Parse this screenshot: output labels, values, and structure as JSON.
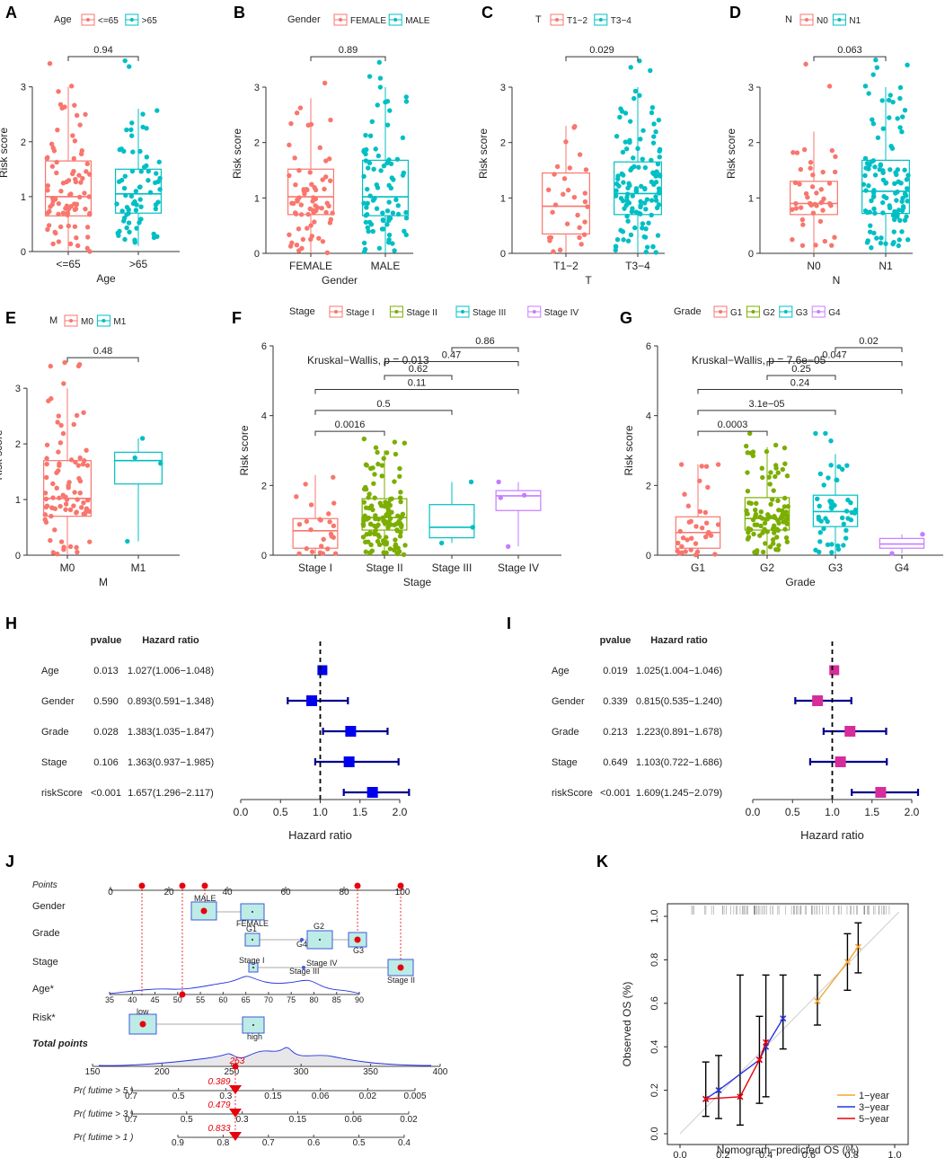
{
  "colors": {
    "g1": "#F8766D",
    "g2": "#7CAE00",
    "g3": "#00BFC4",
    "g4": "#C77CFF",
    "blue": "#0000EE",
    "navy": "#00008B",
    "magenta": "#D62D9A",
    "box_fill": "#BDEBE5",
    "box_stroke": "#3B5BDB",
    "red": "#E8000B",
    "cal_1y": "#F4A533",
    "cal_3y": "#2535E0",
    "cal_5y": "#E8000B"
  },
  "chart_data": [
    {
      "type": "box",
      "panel": "A",
      "legend_title": "Age",
      "xlabel": "Age",
      "ylabel": "Risk score",
      "ylim": [
        0,
        3.6
      ],
      "yticks": [
        0,
        1,
        2,
        3
      ],
      "groups": [
        {
          "name": "<=65",
          "color": "g1",
          "q1": 0.65,
          "median": 1.0,
          "q3": 1.65,
          "lo": 0.0,
          "hi": 3.0,
          "n": 85,
          "max": 3.5,
          "seed": 11
        },
        {
          "name": ">65",
          "color": "g3",
          "q1": 0.7,
          "median": 1.05,
          "q3": 1.5,
          "lo": 0.1,
          "hi": 2.6,
          "n": 70,
          "max": 3.5,
          "seed": 12
        }
      ],
      "comparisons": [
        {
          "a": 0,
          "b": 1,
          "label": "0.94",
          "y": 3.55
        }
      ]
    },
    {
      "type": "box",
      "panel": "B",
      "legend_title": "Gender",
      "xlabel": "Gender",
      "ylabel": "Risk score",
      "ylim": [
        0,
        3.6
      ],
      "yticks": [
        0,
        1,
        2,
        3
      ],
      "groups": [
        {
          "name": "FEMALE",
          "color": "g1",
          "q1": 0.7,
          "median": 1.02,
          "q3": 1.52,
          "lo": 0.0,
          "hi": 2.8,
          "n": 70,
          "max": 3.5,
          "seed": 21
        },
        {
          "name": "MALE",
          "color": "g3",
          "q1": 0.68,
          "median": 1.02,
          "q3": 1.68,
          "lo": 0.0,
          "hi": 3.0,
          "n": 85,
          "max": 3.5,
          "seed": 22
        }
      ],
      "comparisons": [
        {
          "a": 0,
          "b": 1,
          "label": "0.89",
          "y": 3.55
        }
      ]
    },
    {
      "type": "box",
      "panel": "C",
      "legend_title": "T",
      "xlabel": "T",
      "ylabel": "Risk score",
      "ylim": [
        0,
        3.6
      ],
      "yticks": [
        0,
        1,
        2,
        3
      ],
      "groups": [
        {
          "name": "T1−2",
          "color": "g1",
          "q1": 0.35,
          "median": 0.85,
          "q3": 1.45,
          "lo": 0.0,
          "hi": 2.3,
          "n": 30,
          "max": 2.3,
          "seed": 31
        },
        {
          "name": "T3−4",
          "color": "g3",
          "q1": 0.7,
          "median": 1.08,
          "q3": 1.65,
          "lo": 0.0,
          "hi": 3.0,
          "n": 120,
          "max": 3.5,
          "seed": 32
        }
      ],
      "comparisons": [
        {
          "a": 0,
          "b": 1,
          "label": "0.029",
          "y": 3.55
        }
      ]
    },
    {
      "type": "box",
      "panel": "D",
      "legend_title": "N",
      "xlabel": "N",
      "ylabel": "Risk score",
      "ylim": [
        0,
        3.6
      ],
      "yticks": [
        0,
        1,
        2,
        3
      ],
      "groups": [
        {
          "name": "N0",
          "color": "g1",
          "q1": 0.7,
          "median": 0.9,
          "q3": 1.3,
          "lo": 0.0,
          "hi": 2.2,
          "n": 45,
          "max": 3.5,
          "seed": 41
        },
        {
          "name": "N1",
          "color": "g3",
          "q1": 0.72,
          "median": 1.12,
          "q3": 1.68,
          "lo": 0.0,
          "hi": 3.0,
          "n": 110,
          "max": 3.5,
          "seed": 42
        }
      ],
      "comparisons": [
        {
          "a": 0,
          "b": 1,
          "label": "0.063",
          "y": 3.55
        }
      ]
    },
    {
      "type": "box",
      "panel": "E",
      "legend_title": "M",
      "xlabel": "M",
      "ylabel": "Risk score",
      "ylim": [
        0,
        3.6
      ],
      "yticks": [
        0,
        1,
        2,
        3
      ],
      "groups": [
        {
          "name": "M0",
          "color": "g1",
          "q1": 0.7,
          "median": 1.02,
          "q3": 1.7,
          "lo": 0.0,
          "hi": 3.0,
          "n": 85,
          "max": 3.5,
          "seed": 51
        },
        {
          "name": "M1",
          "color": "g3",
          "q1": 1.28,
          "median": 1.7,
          "q3": 1.85,
          "lo": 0.25,
          "hi": 2.1,
          "n": 4,
          "max": 2.1,
          "seed": 52,
          "points": [
            0.25,
            1.65,
            1.75,
            2.1
          ]
        }
      ],
      "comparisons": [
        {
          "a": 0,
          "b": 1,
          "label": "0.48",
          "y": 3.55
        }
      ]
    },
    {
      "type": "box",
      "panel": "F",
      "legend_title": "Stage",
      "xlabel": "Stage",
      "ylabel": "Risk score",
      "ylim": [
        0,
        6
      ],
      "yticks": [
        0,
        2,
        4,
        6
      ],
      "test_label": "Kruskal−Wallis, p = 0.013",
      "groups": [
        {
          "name": "Stage I",
          "color": "g1",
          "q1": 0.2,
          "median": 0.7,
          "q3": 1.05,
          "lo": 0.0,
          "hi": 2.3,
          "n": 25,
          "max": 2.3,
          "seed": 61
        },
        {
          "name": "Stage II",
          "color": "g2",
          "q1": 0.72,
          "median": 1.08,
          "q3": 1.62,
          "lo": 0.0,
          "hi": 3.0,
          "n": 130,
          "max": 3.5,
          "seed": 62
        },
        {
          "name": "Stage III",
          "color": "g3",
          "q1": 0.5,
          "median": 0.8,
          "q3": 1.45,
          "lo": 0.35,
          "hi": 2.1,
          "n": 3,
          "max": 2.1,
          "seed": 63,
          "points": [
            0.35,
            0.8,
            2.1
          ]
        },
        {
          "name": "Stage IV",
          "color": "g4",
          "q1": 1.28,
          "median": 1.7,
          "q3": 1.85,
          "lo": 0.25,
          "hi": 2.1,
          "n": 4,
          "max": 2.1,
          "seed": 64,
          "points": [
            0.25,
            1.65,
            1.72,
            2.1
          ]
        }
      ],
      "comparisons": [
        {
          "a": 0,
          "b": 1,
          "label": "0.0016",
          "y": 3.55
        },
        {
          "a": 0,
          "b": 2,
          "label": "0.5",
          "y": 4.15
        },
        {
          "a": 0,
          "b": 3,
          "label": "0.11",
          "y": 4.75
        },
        {
          "a": 1,
          "b": 2,
          "label": "0.62",
          "y": 5.15
        },
        {
          "a": 1,
          "b": 3,
          "label": "0.47",
          "y": 5.55
        },
        {
          "a": 2,
          "b": 3,
          "label": "0.86",
          "y": 5.95
        }
      ]
    },
    {
      "type": "box",
      "panel": "G",
      "legend_title": "Grade",
      "xlabel": "Grade",
      "ylabel": "Risk score",
      "ylim": [
        0,
        6
      ],
      "yticks": [
        0,
        2,
        4,
        6
      ],
      "test_label": "Kruskal−Wallis, p = 7.6e−05",
      "groups": [
        {
          "name": "G1",
          "color": "g1",
          "q1": 0.2,
          "median": 0.65,
          "q3": 1.1,
          "lo": 0.0,
          "hi": 2.6,
          "n": 35,
          "max": 2.6,
          "seed": 71
        },
        {
          "name": "G2",
          "color": "g2",
          "q1": 0.72,
          "median": 1.05,
          "q3": 1.65,
          "lo": 0.0,
          "hi": 3.1,
          "n": 100,
          "max": 3.5,
          "seed": 72
        },
        {
          "name": "G3",
          "color": "g3",
          "q1": 0.82,
          "median": 1.25,
          "q3": 1.72,
          "lo": 0.0,
          "hi": 2.9,
          "n": 50,
          "max": 3.5,
          "seed": 73
        },
        {
          "name": "G4",
          "color": "g4",
          "q1": 0.2,
          "median": 0.32,
          "q3": 0.48,
          "lo": 0.05,
          "hi": 0.6,
          "n": 2,
          "max": 0.6,
          "seed": 74,
          "points": [
            0.05,
            0.6
          ]
        }
      ],
      "comparisons": [
        {
          "a": 0,
          "b": 1,
          "label": "0.0003",
          "y": 3.55
        },
        {
          "a": 0,
          "b": 2,
          "label": "3.1e−05",
          "y": 4.15
        },
        {
          "a": 0,
          "b": 3,
          "label": "0.24",
          "y": 4.75
        },
        {
          "a": 1,
          "b": 2,
          "label": "0.25",
          "y": 5.15
        },
        {
          "a": 1,
          "b": 3,
          "label": "0.047",
          "y": 5.55
        },
        {
          "a": 2,
          "b": 3,
          "label": "0.02",
          "y": 5.95
        }
      ]
    },
    {
      "type": "forest",
      "panel": "H",
      "color": "blue",
      "line_color": "navy",
      "col_pvalue": "pvalue",
      "col_hr": "Hazard ratio",
      "xlabel": "Hazard ratio",
      "xlim": [
        0,
        2.0
      ],
      "xticks": [
        "0.0",
        "0.5",
        "1.0",
        "1.5",
        "2.0"
      ],
      "ref": 1.0,
      "rows": [
        {
          "name": "Age",
          "p": "0.013",
          "hr_text": "1.027(1.006−1.048)",
          "hr": 1.027,
          "lo": 1.006,
          "hi": 1.048
        },
        {
          "name": "Gender",
          "p": "0.590",
          "hr_text": "0.893(0.591−1.348)",
          "hr": 0.893,
          "lo": 0.591,
          "hi": 1.348
        },
        {
          "name": "Grade",
          "p": "0.028",
          "hr_text": "1.383(1.035−1.847)",
          "hr": 1.383,
          "lo": 1.035,
          "hi": 1.847
        },
        {
          "name": "Stage",
          "p": "0.106",
          "hr_text": "1.363(0.937−1.985)",
          "hr": 1.363,
          "lo": 0.937,
          "hi": 1.985
        },
        {
          "name": "riskScore",
          "p": "<0.001",
          "hr_text": "1.657(1.296−2.117)",
          "hr": 1.657,
          "lo": 1.296,
          "hi": 2.117
        }
      ]
    },
    {
      "type": "forest",
      "panel": "I",
      "color": "magenta",
      "line_color": "navy",
      "col_pvalue": "pvalue",
      "col_hr": "Hazard ratio",
      "xlabel": "Hazard ratio",
      "xlim": [
        0,
        2.0
      ],
      "xticks": [
        "0.0",
        "0.5",
        "1.0",
        "1.5",
        "2.0"
      ],
      "ref": 1.0,
      "rows": [
        {
          "name": "Age",
          "p": "0.019",
          "hr_text": "1.025(1.004−1.046)",
          "hr": 1.025,
          "lo": 1.004,
          "hi": 1.046
        },
        {
          "name": "Gender",
          "p": "0.339",
          "hr_text": "0.815(0.535−1.240)",
          "hr": 0.815,
          "lo": 0.535,
          "hi": 1.24
        },
        {
          "name": "Grade",
          "p": "0.213",
          "hr_text": "1.223(0.891−1.678)",
          "hr": 1.223,
          "lo": 0.891,
          "hi": 1.678
        },
        {
          "name": "Stage",
          "p": "0.649",
          "hr_text": "1.103(0.722−1.686)",
          "hr": 1.103,
          "lo": 0.722,
          "hi": 1.686
        },
        {
          "name": "riskScore",
          "p": "<0.001",
          "hr_text": "1.609(1.245−2.079)",
          "hr": 1.609,
          "lo": 1.245,
          "hi": 2.079
        }
      ]
    },
    {
      "type": "nomogram",
      "panel": "J",
      "points_label": "Points",
      "points_ticks": [
        "0",
        "20",
        "40",
        "60",
        "80",
        "100"
      ],
      "gender_label": "Gender",
      "gender_levels": [
        "MALE",
        "FEMALE"
      ],
      "grade_label": "Grade",
      "grade_levels": [
        "G1",
        "G4",
        "G2",
        "G3"
      ],
      "stage_label": "Stage",
      "stage_levels": [
        "Stage I",
        "Stage IV",
        "Stage III",
        "Stage II"
      ],
      "age_label": "Age*",
      "age_ticks": [
        "35",
        "40",
        "45",
        "50",
        "55",
        "60",
        "65",
        "70",
        "75",
        "80",
        "85",
        "90"
      ],
      "risk_label": "Risk*",
      "risk_levels": [
        "low",
        "high"
      ],
      "total_label": "Total points",
      "total_ticks": [
        "150",
        "200",
        "250",
        "300",
        "350",
        "400"
      ],
      "total_value": "253",
      "surv": [
        {
          "label": "Pr( futime > 5 )",
          "ticks": [
            "0.7",
            "0.5",
            "0.3",
            "0.15",
            "0.06",
            "0.02",
            "0.005"
          ],
          "value": "0.389"
        },
        {
          "label": "Pr( futime > 3 )",
          "ticks": [
            "0.7",
            "0.5",
            "0.3",
            "0.15",
            "0.06",
            "0.02"
          ],
          "value": "0.479"
        },
        {
          "label": "Pr( futime > 1 )",
          "ticks": [
            "0.9",
            "0.8",
            "0.7",
            "0.6",
            "0.5",
            "0.4"
          ],
          "value": "0.833"
        }
      ]
    },
    {
      "type": "calibration",
      "panel": "K",
      "xlabel": "Nomogram−predicted OS (%)",
      "ylabel": "Observed OS (%)",
      "xlim": [
        0,
        1
      ],
      "ylim": [
        0,
        1
      ],
      "xticks": [
        "0.0",
        "0.2",
        "0.4",
        "0.6",
        "0.8",
        "1.0"
      ],
      "yticks": [
        "0.0",
        "0.2",
        "0.4",
        "0.6",
        "0.8",
        "1.0"
      ],
      "series": [
        {
          "name": "1−year",
          "color": "cal_1y",
          "x": [
            0.64,
            0.78,
            0.83
          ],
          "y": [
            0.61,
            0.79,
            0.86
          ]
        },
        {
          "name": "3−year",
          "color": "cal_3y",
          "x": [
            0.12,
            0.18,
            0.37,
            0.4,
            0.48
          ],
          "y": [
            0.16,
            0.2,
            0.34,
            0.4,
            0.53
          ]
        },
        {
          "name": "5−year",
          "color": "cal_5y",
          "x": [
            0.12,
            0.28,
            0.37,
            0.4
          ],
          "y": [
            0.16,
            0.17,
            0.34,
            0.42
          ]
        }
      ],
      "errorbars": [
        {
          "x": 0.12,
          "lo": 0.08,
          "hi": 0.33
        },
        {
          "x": 0.18,
          "lo": 0.07,
          "hi": 0.36
        },
        {
          "x": 0.28,
          "lo": 0.04,
          "hi": 0.73
        },
        {
          "x": 0.37,
          "lo": 0.14,
          "hi": 0.54
        },
        {
          "x": 0.4,
          "lo": 0.17,
          "hi": 0.73
        },
        {
          "x": 0.48,
          "lo": 0.39,
          "hi": 0.73
        },
        {
          "x": 0.64,
          "lo": 0.5,
          "hi": 0.73
        },
        {
          "x": 0.78,
          "lo": 0.66,
          "hi": 0.92
        },
        {
          "x": 0.83,
          "lo": 0.74,
          "hi": 0.97
        }
      ]
    }
  ]
}
